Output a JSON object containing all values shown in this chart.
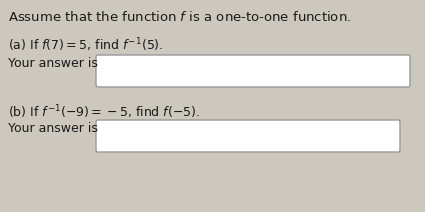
{
  "background_color": "#cdc8be",
  "text_color": "#1a1a1a",
  "box_fill": "#ffffff",
  "box_edge": "#999999",
  "title": "Assume that the function $f$ is a one-to-one function.",
  "line_a": "(a) If $f(7) = 5$, find $f^{-1}(5)$.",
  "label_a": "Your answer is",
  "line_b": "(b) If $f^{-1}(-9) = -5$, find $f(-5)$.",
  "label_b": "Your answer is",
  "font_size_title": 9.5,
  "font_size_body": 9.0,
  "font_size_label": 9.0
}
